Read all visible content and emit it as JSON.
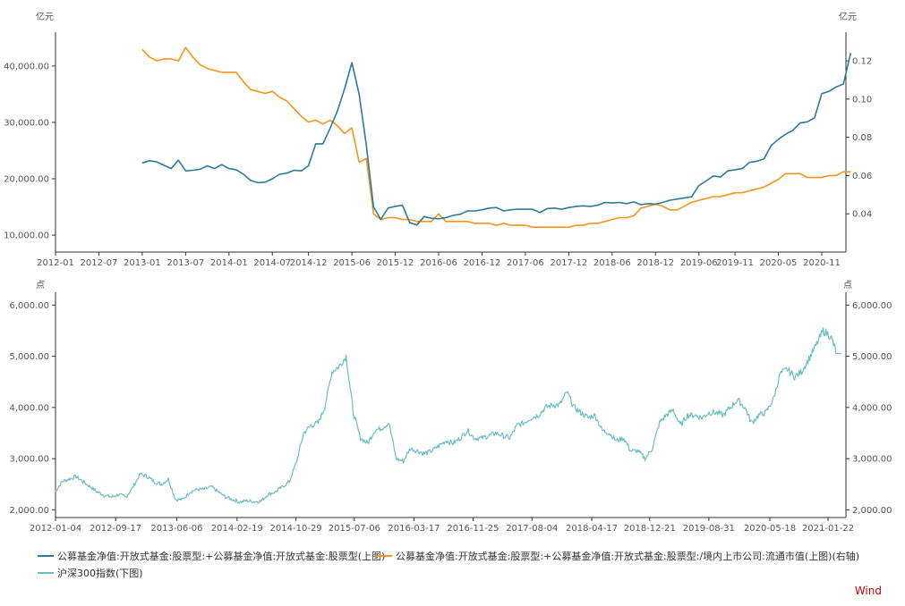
{
  "colors": {
    "fund_nav": "#2d7a99",
    "ratio": "#f7941d",
    "hs300": "#6bbfbf",
    "axis": "#333333",
    "watermark": "#cc0000"
  },
  "watermark": "Wind",
  "legend": [
    {
      "label": "公募基金净值:开放式基金:股票型:+公募基金净值:开放式基金:股票型(上图)",
      "color": "#2d7a99"
    },
    {
      "label": "公募基金净值:开放式基金:股票型:+公募基金净值:开放式基金:股票型:/境内上市公司:流通市值(上图)(右轴)",
      "color": "#f7941d"
    },
    {
      "label": "沪深300指数(下图)",
      "color": "#6bbfbf"
    }
  ],
  "chart_data": [
    {
      "type": "line",
      "left_unit": "亿元",
      "right_unit": "亿元",
      "x_ticks": [
        "2012-01",
        "2012-07",
        "2013-01",
        "2013-07",
        "2014-01",
        "2014-07",
        "2014-12",
        "2015-06",
        "2015-12",
        "2016-06",
        "2016-12",
        "2017-06",
        "2017-12",
        "2018-06",
        "2018-12",
        "2019-06",
        "2019-11",
        "2020-05",
        "2020-11"
      ],
      "y_left_ticks": [
        "10,000.00",
        "20,000.00",
        "30,000.00",
        "40,000.00"
      ],
      "y_left_range": [
        7000,
        46000
      ],
      "y_right_ticks": [
        "0.04",
        "0.06",
        "0.08",
        "0.10",
        "0.12"
      ],
      "y_right_range": [
        0.02,
        0.135
      ],
      "series": [
        {
          "name": "公募基金净值:开放式基金:股票型:+公募基金净值:开放式基金:股票型(上图)",
          "axis": "left",
          "x": [
            "2013-01",
            "2013-02",
            "2013-03",
            "2013-04",
            "2013-05",
            "2013-06",
            "2013-07",
            "2013-08",
            "2013-09",
            "2013-10",
            "2013-11",
            "2013-12",
            "2014-01",
            "2014-02",
            "2014-03",
            "2014-04",
            "2014-05",
            "2014-06",
            "2014-07",
            "2014-08",
            "2014-09",
            "2014-10",
            "2014-11",
            "2014-12",
            "2015-01",
            "2015-02",
            "2015-03",
            "2015-04",
            "2015-05",
            "2015-06",
            "2015-07",
            "2015-08",
            "2015-09",
            "2015-10",
            "2015-11",
            "2015-12",
            "2016-01",
            "2016-02",
            "2016-03",
            "2016-04",
            "2016-05",
            "2016-06",
            "2016-07",
            "2016-08",
            "2016-09",
            "2016-10",
            "2016-11",
            "2016-12",
            "2017-01",
            "2017-02",
            "2017-03",
            "2017-04",
            "2017-05",
            "2017-06",
            "2017-07",
            "2017-08",
            "2017-09",
            "2017-10",
            "2017-11",
            "2017-12",
            "2018-01",
            "2018-02",
            "2018-03",
            "2018-04",
            "2018-05",
            "2018-06",
            "2018-07",
            "2018-08",
            "2018-09",
            "2018-10",
            "2018-11",
            "2018-12",
            "2019-01",
            "2019-02",
            "2019-03",
            "2019-04",
            "2019-05",
            "2019-06",
            "2019-07",
            "2019-08",
            "2019-09",
            "2019-10",
            "2019-11",
            "2019-12",
            "2020-01",
            "2020-02",
            "2020-03",
            "2020-04",
            "2020-05",
            "2020-06",
            "2020-07",
            "2020-08",
            "2020-09",
            "2020-10",
            "2020-11",
            "2020-12",
            "2021-01",
            "2021-02",
            "2021-03"
          ],
          "values": [
            22800,
            23200,
            23000,
            22400,
            21800,
            23300,
            21400,
            21500,
            21700,
            22300,
            21800,
            22500,
            21800,
            21600,
            20800,
            19700,
            19300,
            19400,
            20000,
            20800,
            21000,
            21500,
            21400,
            22300,
            26200,
            26200,
            29000,
            32000,
            36000,
            40600,
            35000,
            26000,
            15000,
            12800,
            14800,
            15100,
            15300,
            12200,
            11800,
            13300,
            13000,
            12900,
            13100,
            13500,
            13700,
            14300,
            14300,
            14500,
            14800,
            14900,
            14300,
            14500,
            14600,
            14600,
            14600,
            14000,
            14700,
            14800,
            14600,
            14900,
            15100,
            15200,
            15100,
            15300,
            15800,
            15700,
            15800,
            15600,
            15900,
            15400,
            15600,
            15500,
            15800,
            16200,
            16400,
            16600,
            16800,
            18800,
            19600,
            20500,
            20300,
            21400,
            21600,
            21800,
            22900,
            23100,
            23500,
            25900,
            27000,
            27900,
            28600,
            29900,
            30100,
            30800,
            35100,
            35500,
            36300,
            36800,
            42300
          ]
        },
        {
          "name": "公募基金净值:开放式基金:股票型:+公募基金净值:开放式基金:股票型:/境内上市公司:流通市值(上图)(右轴)",
          "axis": "right",
          "x": [
            "2013-01",
            "2013-02",
            "2013-03",
            "2013-04",
            "2013-05",
            "2013-06",
            "2013-07",
            "2013-08",
            "2013-09",
            "2013-10",
            "2013-11",
            "2013-12",
            "2014-01",
            "2014-02",
            "2014-03",
            "2014-04",
            "2014-05",
            "2014-06",
            "2014-07",
            "2014-08",
            "2014-09",
            "2014-10",
            "2014-11",
            "2014-12",
            "2015-01",
            "2015-02",
            "2015-03",
            "2015-04",
            "2015-05",
            "2015-06",
            "2015-07",
            "2015-08",
            "2015-09",
            "2015-10",
            "2015-11",
            "2015-12",
            "2016-01",
            "2016-02",
            "2016-03",
            "2016-04",
            "2016-05",
            "2016-06",
            "2016-07",
            "2016-08",
            "2016-09",
            "2016-10",
            "2016-11",
            "2016-12",
            "2017-01",
            "2017-02",
            "2017-03",
            "2017-04",
            "2017-05",
            "2017-06",
            "2017-07",
            "2017-08",
            "2017-09",
            "2017-10",
            "2017-11",
            "2017-12",
            "2018-01",
            "2018-02",
            "2018-03",
            "2018-04",
            "2018-05",
            "2018-06",
            "2018-07",
            "2018-08",
            "2018-09",
            "2018-10",
            "2018-11",
            "2018-12",
            "2019-01",
            "2019-02",
            "2019-03",
            "2019-04",
            "2019-05",
            "2019-06",
            "2019-07",
            "2019-08",
            "2019-09",
            "2019-10",
            "2019-11",
            "2019-12",
            "2020-01",
            "2020-02",
            "2020-03",
            "2020-04",
            "2020-05",
            "2020-06",
            "2020-07",
            "2020-08",
            "2020-09",
            "2020-10",
            "2020-11",
            "2020-12",
            "2021-01",
            "2021-02",
            "2021-03"
          ],
          "values": [
            0.126,
            0.122,
            0.12,
            0.121,
            0.121,
            0.12,
            0.127,
            0.122,
            0.118,
            0.116,
            0.115,
            0.114,
            0.114,
            0.114,
            0.109,
            0.105,
            0.104,
            0.103,
            0.104,
            0.101,
            0.099,
            0.095,
            0.091,
            0.088,
            0.089,
            0.087,
            0.089,
            0.086,
            0.082,
            0.085,
            0.067,
            0.069,
            0.04,
            0.037,
            0.038,
            0.038,
            0.037,
            0.037,
            0.036,
            0.036,
            0.036,
            0.04,
            0.036,
            0.036,
            0.036,
            0.036,
            0.035,
            0.035,
            0.035,
            0.034,
            0.035,
            0.034,
            0.034,
            0.034,
            0.033,
            0.033,
            0.033,
            0.033,
            0.033,
            0.033,
            0.034,
            0.034,
            0.035,
            0.035,
            0.036,
            0.037,
            0.038,
            0.038,
            0.039,
            0.043,
            0.044,
            0.045,
            0.044,
            0.042,
            0.042,
            0.044,
            0.046,
            0.047,
            0.048,
            0.049,
            0.049,
            0.05,
            0.051,
            0.051,
            0.052,
            0.053,
            0.054,
            0.056,
            0.058,
            0.061,
            0.061,
            0.061,
            0.059,
            0.059,
            0.059,
            0.06,
            0.06,
            0.062,
            0.062
          ]
        }
      ]
    },
    {
      "type": "line",
      "left_unit": "点",
      "right_unit": "点",
      "x_ticks": [
        "2012-01-04",
        "2012-09-17",
        "2013-06-06",
        "2014-02-19",
        "2014-10-29",
        "2015-07-06",
        "2016-03-17",
        "2016-11-25",
        "2017-08-04",
        "2018-04-17",
        "2018-12-21",
        "2019-08-31",
        "2020-05-18",
        "2021-01-22"
      ],
      "y_ticks": [
        "2,000.00",
        "3,000.00",
        "4,000.00",
        "5,000.00",
        "6,000.00"
      ],
      "y_range": [
        1850,
        6250
      ],
      "series": [
        {
          "name": "沪深300指数(下图)",
          "x": [
            "2012-01",
            "2012-02",
            "2012-03",
            "2012-04",
            "2012-05",
            "2012-06",
            "2012-07",
            "2012-08",
            "2012-09",
            "2012-10",
            "2012-11",
            "2012-12",
            "2013-01",
            "2013-02",
            "2013-03",
            "2013-04",
            "2013-05",
            "2013-06",
            "2013-07",
            "2013-08",
            "2013-09",
            "2013-10",
            "2013-11",
            "2013-12",
            "2014-01",
            "2014-02",
            "2014-03",
            "2014-04",
            "2014-05",
            "2014-06",
            "2014-07",
            "2014-08",
            "2014-09",
            "2014-10",
            "2014-11",
            "2014-12",
            "2015-01",
            "2015-02",
            "2015-03",
            "2015-04",
            "2015-05",
            "2015-06",
            "2015-07",
            "2015-08",
            "2015-09",
            "2015-10",
            "2015-11",
            "2015-12",
            "2016-01",
            "2016-02",
            "2016-03",
            "2016-04",
            "2016-05",
            "2016-06",
            "2016-07",
            "2016-08",
            "2016-09",
            "2016-10",
            "2016-11",
            "2016-12",
            "2017-01",
            "2017-02",
            "2017-03",
            "2017-04",
            "2017-05",
            "2017-06",
            "2017-07",
            "2017-08",
            "2017-09",
            "2017-10",
            "2017-11",
            "2017-12",
            "2018-01",
            "2018-02",
            "2018-03",
            "2018-04",
            "2018-05",
            "2018-06",
            "2018-07",
            "2018-08",
            "2018-09",
            "2018-10",
            "2018-11",
            "2018-12",
            "2019-01",
            "2019-02",
            "2019-03",
            "2019-04",
            "2019-05",
            "2019-06",
            "2019-07",
            "2019-08",
            "2019-09",
            "2019-10",
            "2019-11",
            "2019-12",
            "2020-01",
            "2020-02",
            "2020-03",
            "2020-04",
            "2020-05",
            "2020-06",
            "2020-07",
            "2020-08",
            "2020-09",
            "2020-10",
            "2020-11",
            "2020-12",
            "2021-01",
            "2021-02",
            "2021-03"
          ],
          "values": [
            2350,
            2550,
            2600,
            2650,
            2550,
            2450,
            2350,
            2280,
            2250,
            2300,
            2250,
            2450,
            2700,
            2650,
            2550,
            2500,
            2600,
            2200,
            2200,
            2350,
            2400,
            2400,
            2450,
            2350,
            2250,
            2200,
            2150,
            2180,
            2160,
            2170,
            2300,
            2350,
            2450,
            2550,
            2950,
            3500,
            3650,
            3700,
            4000,
            4700,
            4800,
            5000,
            3900,
            3400,
            3300,
            3550,
            3600,
            3700,
            3000,
            2950,
            3200,
            3150,
            3100,
            3150,
            3250,
            3350,
            3300,
            3400,
            3550,
            3400,
            3400,
            3450,
            3500,
            3450,
            3400,
            3650,
            3700,
            3800,
            3850,
            4000,
            4050,
            4050,
            4300,
            4000,
            3900,
            3800,
            3850,
            3550,
            3500,
            3350,
            3400,
            3150,
            3150,
            3000,
            3200,
            3700,
            3850,
            3950,
            3650,
            3850,
            3850,
            3800,
            3900,
            3900,
            3850,
            4000,
            4150,
            4000,
            3700,
            3850,
            3900,
            4150,
            4650,
            4750,
            4600,
            4700,
            4950,
            5200,
            5500,
            5400,
            5050
          ]
        }
      ]
    }
  ]
}
